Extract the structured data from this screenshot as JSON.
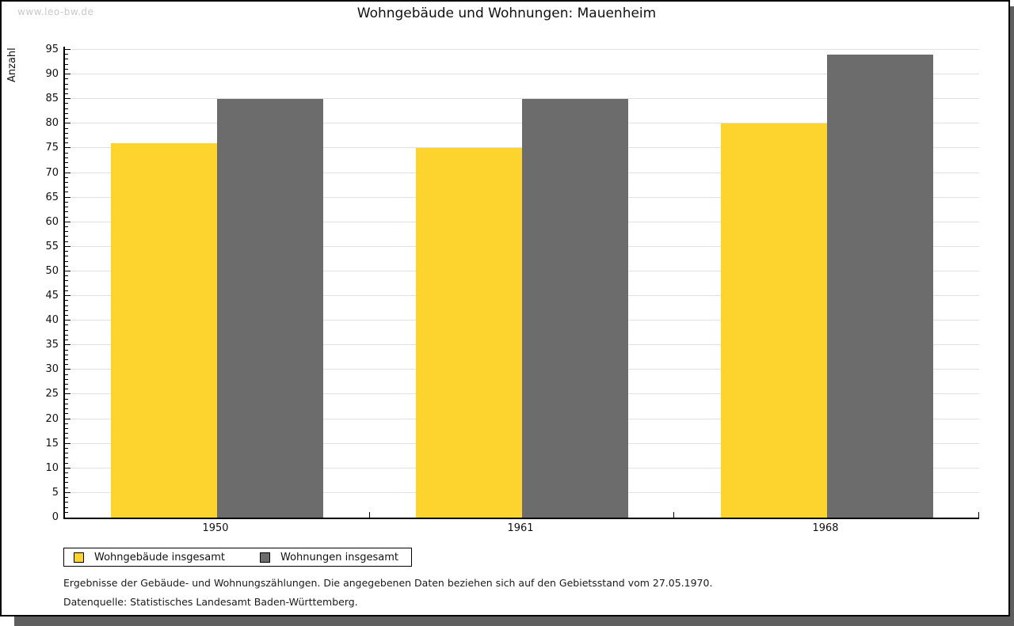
{
  "watermark": "www.leo-bw.de",
  "chart_data": {
    "type": "bar",
    "title": "Wohngebäude und Wohnungen: Mauenheim",
    "ylabel": "Anzahl",
    "xlabel": "",
    "categories": [
      "1950",
      "1961",
      "1968"
    ],
    "series": [
      {
        "name": "Wohngebäude insgesamt",
        "color": "#FCD42D",
        "values": [
          76,
          75,
          80
        ]
      },
      {
        "name": "Wohnungen insgesamt",
        "color": "#6C6C6C",
        "values": [
          85,
          85,
          94
        ]
      }
    ],
    "ylim": [
      0,
      95
    ],
    "tick_step": 5,
    "minor_tick_step": 1,
    "grid": true,
    "legend_position": "bottom-left"
  },
  "notes": {
    "line1": "Ergebnisse der Gebäude- und Wohnungszählungen. Die angegebenen Daten beziehen sich auf den Gebietsstand vom 27.05.1970.",
    "line2": "Datenquelle: Statistisches Landesamt Baden-Württemberg."
  },
  "colors": {
    "gridline": "#E1E1E1",
    "axis": "#000000",
    "watermark": "#C9C9C9",
    "shadow": "#5F5F5F",
    "background": "#FFFFFF",
    "border": "#000000"
  }
}
